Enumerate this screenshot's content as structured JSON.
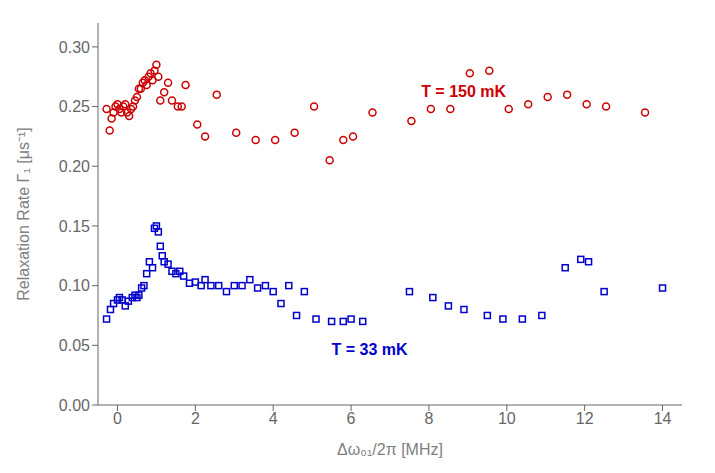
{
  "chart_data": {
    "type": "scatter",
    "xlabel": "Δω₀₁/2π [MHz]",
    "ylabel": "Relaxation Rate Γ₁ [μs⁻¹]",
    "xlim": [
      -0.5,
      14.5
    ],
    "ylim": [
      0.0,
      0.32
    ],
    "xticks": [
      0,
      2,
      4,
      6,
      8,
      10,
      12,
      14
    ],
    "yticks": [
      {
        "value": 0.0,
        "label": "0.00"
      },
      0.05,
      {
        "value": 0.1,
        "label": "0.10"
      },
      0.15,
      {
        "value": 0.2,
        "label": "0.20"
      },
      0.25,
      {
        "value": 0.3,
        "label": "0.30"
      }
    ],
    "series": [
      {
        "color": "#CC0000",
        "marker": "circle",
        "x": [
          -0.28,
          -0.2,
          -0.15,
          -0.1,
          -0.05,
          0.0,
          0.05,
          0.1,
          0.15,
          0.2,
          0.25,
          0.3,
          0.35,
          0.4,
          0.45,
          0.5,
          0.55,
          0.6,
          0.65,
          0.7,
          0.75,
          0.8,
          0.85,
          0.9,
          0.95,
          1.0,
          1.05,
          1.1,
          1.2,
          1.3,
          1.4,
          1.55,
          1.65,
          1.75,
          2.05,
          2.25,
          2.55,
          3.05,
          3.55,
          4.05,
          4.55,
          5.05,
          5.45,
          5.8,
          6.05,
          6.55,
          7.55,
          8.05,
          8.55,
          9.05,
          9.55,
          10.05,
          10.55,
          11.05,
          11.55,
          12.05,
          12.55,
          13.55
        ],
        "values": [
          0.248,
          0.23,
          0.24,
          0.245,
          0.25,
          0.252,
          0.248,
          0.245,
          0.25,
          0.252,
          0.245,
          0.242,
          0.248,
          0.25,
          0.255,
          0.258,
          0.265,
          0.265,
          0.27,
          0.272,
          0.268,
          0.275,
          0.278,
          0.272,
          0.28,
          0.285,
          0.275,
          0.255,
          0.262,
          0.27,
          0.255,
          0.25,
          0.25,
          0.268,
          0.235,
          0.225,
          0.26,
          0.228,
          0.222,
          0.222,
          0.228,
          0.25,
          0.205,
          0.222,
          0.225,
          0.245,
          0.238,
          0.248,
          0.248,
          0.278,
          0.28,
          0.248,
          0.252,
          0.258,
          0.26,
          0.252,
          0.25,
          0.245
        ]
      },
      {
        "color": "#0000CC",
        "marker": "square",
        "x": [
          -0.28,
          -0.18,
          -0.1,
          0.0,
          0.05,
          0.12,
          0.2,
          0.28,
          0.38,
          0.45,
          0.5,
          0.55,
          0.62,
          0.68,
          0.75,
          0.82,
          0.9,
          0.95,
          1.0,
          1.05,
          1.1,
          1.15,
          1.2,
          1.3,
          1.4,
          1.5,
          1.6,
          1.7,
          1.85,
          2.0,
          2.15,
          2.25,
          2.4,
          2.6,
          2.8,
          3.0,
          3.2,
          3.4,
          3.6,
          3.8,
          4.0,
          4.2,
          4.4,
          4.6,
          4.8,
          5.1,
          5.5,
          5.8,
          6.0,
          6.3,
          7.5,
          8.1,
          8.5,
          8.9,
          9.5,
          9.9,
          10.4,
          10.9,
          11.5,
          11.9,
          12.1,
          12.5,
          14.0
        ],
        "values": [
          0.072,
          0.08,
          0.085,
          0.088,
          0.09,
          0.088,
          0.083,
          0.087,
          0.09,
          0.092,
          0.09,
          0.092,
          0.098,
          0.1,
          0.11,
          0.12,
          0.115,
          0.148,
          0.15,
          0.145,
          0.133,
          0.125,
          0.12,
          0.118,
          0.112,
          0.11,
          0.112,
          0.108,
          0.102,
          0.103,
          0.1,
          0.105,
          0.1,
          0.1,
          0.095,
          0.1,
          0.1,
          0.105,
          0.098,
          0.1,
          0.095,
          0.085,
          0.1,
          0.075,
          0.095,
          0.072,
          0.07,
          0.07,
          0.072,
          0.07,
          0.095,
          0.09,
          0.083,
          0.08,
          0.075,
          0.072,
          0.072,
          0.075,
          0.115,
          0.122,
          0.12,
          0.095,
          0.098
        ]
      }
    ],
    "annotations": [
      {
        "text": "T = 150 mK",
        "x": 7.8,
        "y": 0.258,
        "color": "#CC0000"
      },
      {
        "text": "T = 33 mK",
        "x": 5.5,
        "y": 0.042,
        "color": "#0000CC"
      }
    ]
  }
}
